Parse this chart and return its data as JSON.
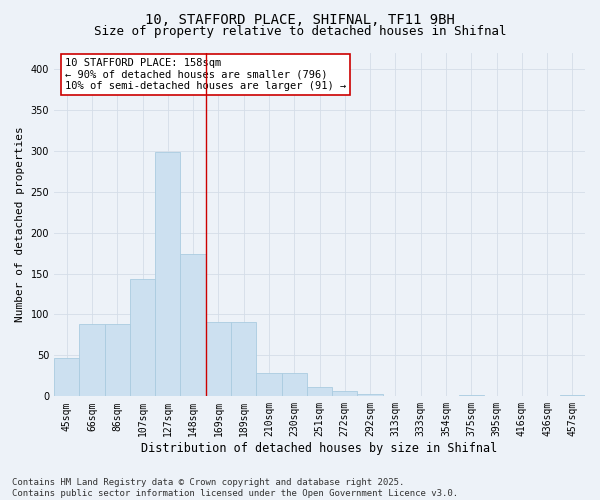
{
  "title_line1": "10, STAFFORD PLACE, SHIFNAL, TF11 9BH",
  "title_line2": "Size of property relative to detached houses in Shifnal",
  "xlabel": "Distribution of detached houses by size in Shifnal",
  "ylabel": "Number of detached properties",
  "categories": [
    "45sqm",
    "66sqm",
    "86sqm",
    "107sqm",
    "127sqm",
    "148sqm",
    "169sqm",
    "189sqm",
    "210sqm",
    "230sqm",
    "251sqm",
    "272sqm",
    "292sqm",
    "313sqm",
    "333sqm",
    "354sqm",
    "375sqm",
    "395sqm",
    "416sqm",
    "436sqm",
    "457sqm"
  ],
  "values": [
    47,
    88,
    88,
    143,
    298,
    174,
    91,
    91,
    29,
    29,
    11,
    7,
    3,
    0,
    0,
    0,
    2,
    0,
    0,
    0,
    2
  ],
  "bar_color": "#cce0f0",
  "bar_edge_color": "#aacce0",
  "grid_color": "#d4dde8",
  "bg_color": "#edf2f8",
  "vline_x": 5.5,
  "vline_color": "#cc0000",
  "annotation_text": "10 STAFFORD PLACE: 158sqm\n← 90% of detached houses are smaller (796)\n10% of semi-detached houses are larger (91) →",
  "annotation_box_facecolor": "#ffffff",
  "annotation_border_color": "#cc0000",
  "ylim": [
    0,
    420
  ],
  "yticks": [
    0,
    50,
    100,
    150,
    200,
    250,
    300,
    350,
    400
  ],
  "footer_line1": "Contains HM Land Registry data © Crown copyright and database right 2025.",
  "footer_line2": "Contains public sector information licensed under the Open Government Licence v3.0.",
  "title_fontsize": 10,
  "subtitle_fontsize": 9,
  "ylabel_fontsize": 8,
  "xlabel_fontsize": 8.5,
  "tick_fontsize": 7,
  "annotation_fontsize": 7.5,
  "footer_fontsize": 6.5
}
